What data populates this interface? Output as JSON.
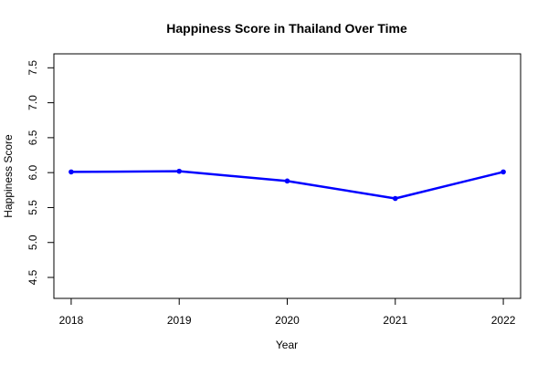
{
  "chart_data": {
    "type": "line",
    "title": "Happiness Score in Thailand Over Time",
    "xlabel": "Year",
    "ylabel": "Happiness Score",
    "x": [
      2018,
      2019,
      2020,
      2021,
      2022
    ],
    "x_tick_labels": [
      "2018",
      "2019",
      "2020",
      "2021",
      "2022"
    ],
    "y_ticks": [
      4.5,
      5.0,
      5.5,
      6.0,
      6.5,
      7.0,
      7.5
    ],
    "y_tick_labels": [
      "4.5",
      "5.0",
      "5.5",
      "6.0",
      "6.5",
      "7.0",
      "7.5"
    ],
    "ylim": [
      4.2,
      7.7
    ],
    "xlim": [
      2017.84,
      2022.16
    ],
    "series": [
      {
        "values": [
          6.01,
          6.02,
          5.88,
          5.63,
          6.01
        ],
        "color": "#0000ff",
        "marker": "circle"
      }
    ],
    "grid": false,
    "legend": "none"
  }
}
